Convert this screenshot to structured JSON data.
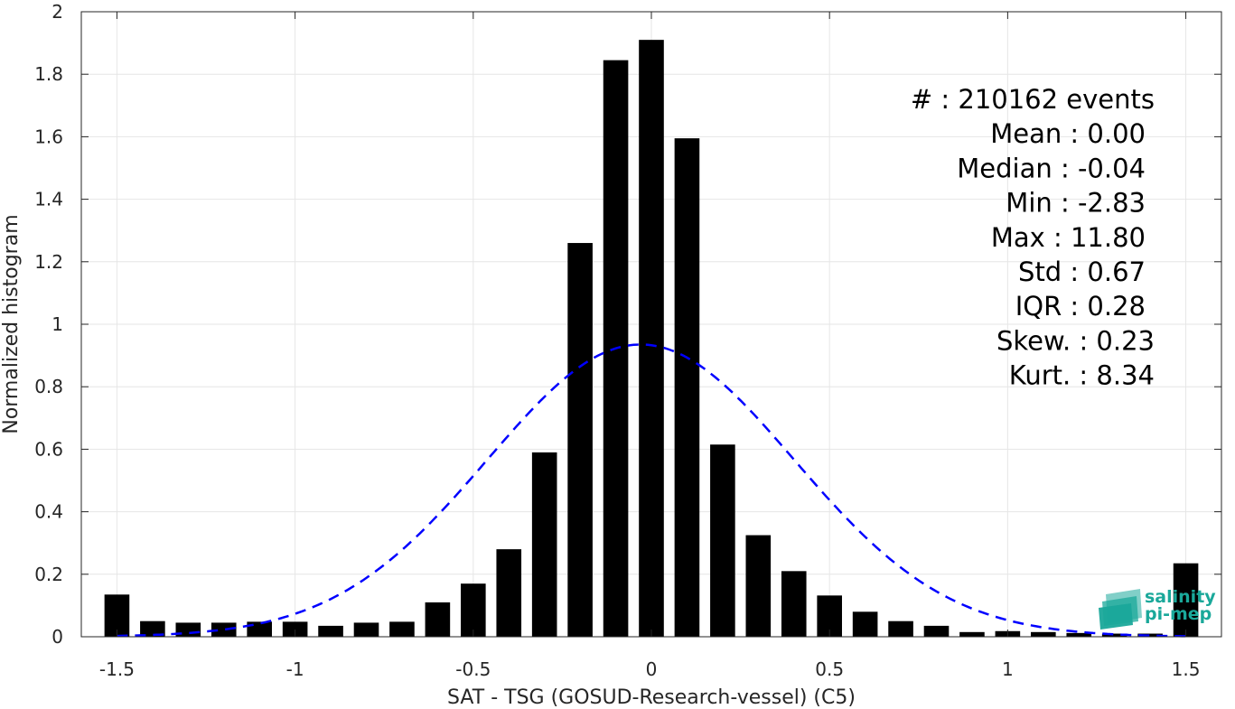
{
  "chart_data": {
    "type": "bar",
    "xlabel": "SAT - TSG (GOSUD-Research-vessel) (C5)",
    "ylabel": "Normalized histogram",
    "xlim": [
      -1.6,
      1.6
    ],
    "ylim": [
      0,
      2
    ],
    "grid": true,
    "bar_color": "#000000",
    "fit_color": "#0000ff",
    "xticks": [
      -1.5,
      -1,
      -0.5,
      0,
      0.5,
      1,
      1.5
    ],
    "xtick_labels": [
      "-1.5",
      "-1",
      "-0.5",
      "0",
      "0.5",
      "1",
      "1.5"
    ],
    "yticks": [
      0,
      0.2,
      0.4,
      0.6,
      0.8,
      1,
      1.2,
      1.4,
      1.6,
      1.8,
      2
    ],
    "ytick_labels": [
      "0",
      "0.2",
      "0.4",
      "0.6",
      "0.8",
      "1",
      "1.2",
      "1.4",
      "1.6",
      "1.8",
      "2"
    ],
    "bin_width": 0.1,
    "bar_width": 0.07,
    "bins": [
      {
        "x": -1.5,
        "y": 0.135
      },
      {
        "x": -1.4,
        "y": 0.05
      },
      {
        "x": -1.3,
        "y": 0.045
      },
      {
        "x": -1.2,
        "y": 0.045
      },
      {
        "x": -1.1,
        "y": 0.048
      },
      {
        "x": -1.0,
        "y": 0.048
      },
      {
        "x": -0.9,
        "y": 0.035
      },
      {
        "x": -0.8,
        "y": 0.045
      },
      {
        "x": -0.7,
        "y": 0.048
      },
      {
        "x": -0.6,
        "y": 0.11
      },
      {
        "x": -0.5,
        "y": 0.17
      },
      {
        "x": -0.4,
        "y": 0.28
      },
      {
        "x": -0.3,
        "y": 0.59
      },
      {
        "x": -0.2,
        "y": 1.26
      },
      {
        "x": -0.1,
        "y": 1.845
      },
      {
        "x": 0.0,
        "y": 1.91
      },
      {
        "x": 0.1,
        "y": 1.595
      },
      {
        "x": 0.2,
        "y": 0.615
      },
      {
        "x": 0.3,
        "y": 0.325
      },
      {
        "x": 0.4,
        "y": 0.21
      },
      {
        "x": 0.5,
        "y": 0.132
      },
      {
        "x": 0.6,
        "y": 0.08
      },
      {
        "x": 0.7,
        "y": 0.05
      },
      {
        "x": 0.8,
        "y": 0.035
      },
      {
        "x": 0.9,
        "y": 0.015
      },
      {
        "x": 1.0,
        "y": 0.018
      },
      {
        "x": 1.1,
        "y": 0.015
      },
      {
        "x": 1.2,
        "y": 0.012
      },
      {
        "x": 1.3,
        "y": 0.01
      },
      {
        "x": 1.4,
        "y": 0.01
      },
      {
        "x": 1.5,
        "y": 0.235
      }
    ],
    "gaussian_fit": {
      "mean": -0.03,
      "std": 0.43,
      "peak": 0.935,
      "style": "dashed"
    },
    "stats_annotation": [
      "#  : 210162 events",
      "Mean : 0.00",
      "Median : -0.04",
      "Min : -2.83",
      "Max : 11.80",
      "Std : 0.67",
      "IQR : 0.28",
      "Skew. : 0.23",
      "Kurt. : 8.34"
    ]
  },
  "logo": {
    "line1": "salinity",
    "line2": "pi-mep",
    "color": "#1aa89a"
  }
}
